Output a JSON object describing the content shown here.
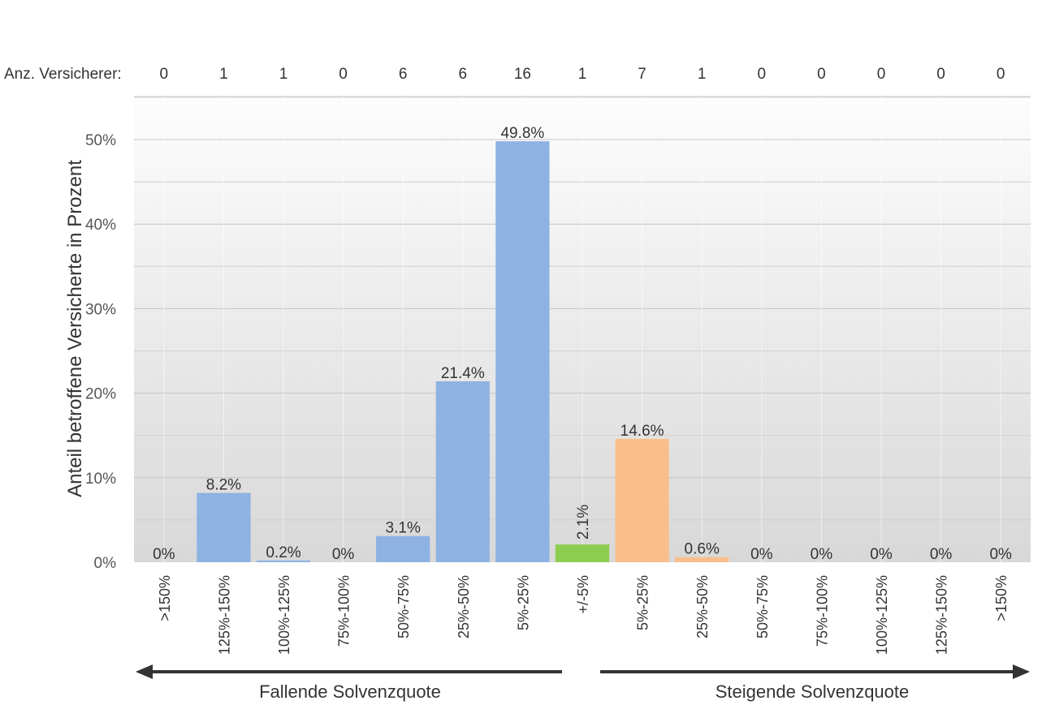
{
  "chart_data": {
    "type": "bar",
    "ylabel": "Anteil betroffene Versicherte in Prozent",
    "ylim": [
      0,
      55
    ],
    "yticks": [
      0,
      10,
      20,
      30,
      40,
      50
    ],
    "ytick_suffix": "%",
    "count_row_label": "Anz. Versicherer:",
    "categories": [
      ">150%",
      "125%-150%",
      "100%-125%",
      "75%-100%",
      "50%-75%",
      "25%-50%",
      "5%-25%",
      "+/-5%",
      "5%-25%",
      "25%-50%",
      "50%-75%",
      "75%-100%",
      "100%-125%",
      "125%-150%",
      ">150%"
    ],
    "values": [
      0,
      8.2,
      0.2,
      0,
      3.1,
      21.4,
      49.8,
      2.1,
      14.6,
      0.6,
      0,
      0,
      0,
      0,
      0
    ],
    "value_labels": [
      "0%",
      "8.2%",
      "0.2%",
      "0%",
      "3.1%",
      "21.4%",
      "49.8%",
      "2.1%",
      "14.6%",
      "0.6%",
      "0%",
      "0%",
      "0%",
      "0%",
      "0%"
    ],
    "counts": [
      "0",
      "1",
      "1",
      "0",
      "6",
      "6",
      "16",
      "1",
      "7",
      "1",
      "0",
      "0",
      "0",
      "0",
      "0"
    ],
    "groups": [
      "falling",
      "falling",
      "falling",
      "falling",
      "falling",
      "falling",
      "falling",
      "neutral",
      "rising",
      "rising",
      "rising",
      "rising",
      "rising",
      "rising",
      "rising"
    ],
    "colors": {
      "falling": "#8eb2e2",
      "neutral": "#8ccc4f",
      "rising": "#f8bf8d"
    },
    "direction_labels": {
      "falling": "Fallende Solvenzquote",
      "rising": "Steigende Solvenzquote"
    },
    "grid": true,
    "legend": "none"
  }
}
